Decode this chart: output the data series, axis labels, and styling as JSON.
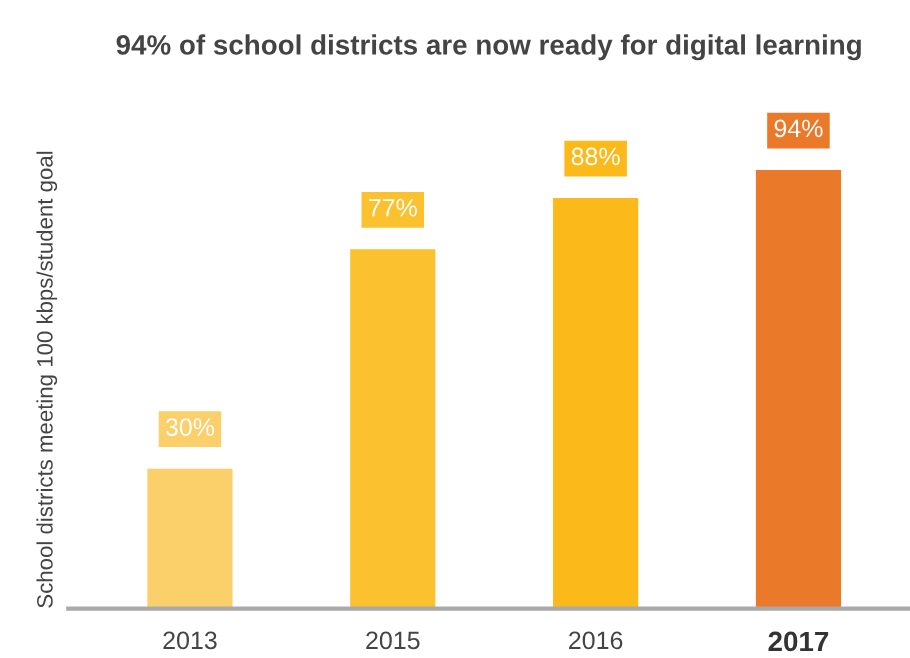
{
  "chart_data": {
    "type": "bar",
    "title": "94% of school districts are now ready for digital learning",
    "ylabel": "School districts meeting 100 kbps/student goal",
    "categories": [
      "2013",
      "2015",
      "2016",
      "2017"
    ],
    "values": [
      30,
      77,
      88,
      94
    ],
    "colors": [
      "#fbd06a",
      "#fbc12e",
      "#fbb91a",
      "#ea7a2a"
    ],
    "value_labels": [
      "30%",
      "77%",
      "88%",
      "94%"
    ],
    "grid": false
  }
}
